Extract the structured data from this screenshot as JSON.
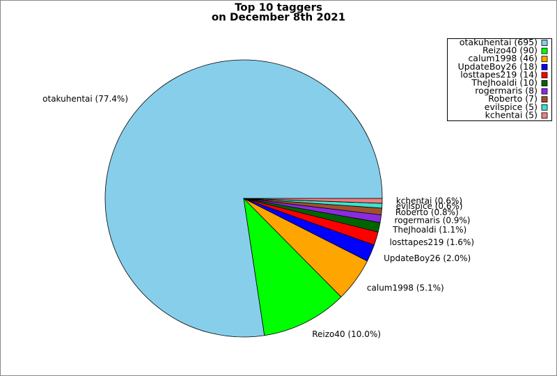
{
  "chart_data": {
    "type": "pie",
    "title": "Top 10 taggers",
    "subtitle": "on December 8th 2021",
    "values": [
      695,
      90,
      46,
      18,
      14,
      10,
      8,
      7,
      5,
      5
    ],
    "labels": [
      "otakuhentai (77.4%)",
      "Reizo40 (10.0%)",
      "calum1998 (5.1%)",
      "UpdateBoy26 (2.0%)",
      "losttapes219 (1.6%)",
      "TheJhoaldi (1.1%)",
      "rogermaris (0.9%)",
      "Roberto (0.8%)",
      "evilspice (0.6%)",
      "kchentai (0.6%)"
    ],
    "legend": [
      "otakuhentai (695)",
      "Reizo40 (90)",
      "calum1998 (46)",
      "UpdateBoy26 (18)",
      "losttapes219 (14)",
      "TheJhoaldi (10)",
      "rogermaris (8)",
      "Roberto (7)",
      "evilspice (5)",
      "kchentai (5)"
    ],
    "colors": [
      "#87ceeb",
      "#00ff00",
      "#ffa500",
      "#0000ff",
      "#ff0000",
      "#006400",
      "#8a2be2",
      "#a0522d",
      "#40e0d0",
      "#f08080"
    ],
    "legend_position": "upper right"
  }
}
